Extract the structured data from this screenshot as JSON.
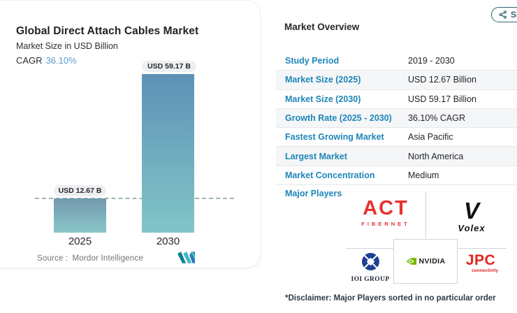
{
  "share_button": {
    "label": "Share"
  },
  "chart_card": {
    "title": "Global Direct Attach Cables Market",
    "subtitle": "Market Size in USD Billion",
    "cagr_label": "CAGR",
    "cagr_value": "36.10%",
    "source_label": "Source :",
    "source_value": "Mordor Intelligence"
  },
  "chart_data": {
    "type": "bar",
    "title": "Global Direct Attach Cables Market",
    "ylabel": "Market Size in USD Billion",
    "categories": [
      "2025",
      "2030"
    ],
    "values": [
      12.67,
      59.17
    ],
    "value_labels": [
      "USD 12.67 B",
      "USD 59.17 B"
    ],
    "cagr": "36.10%",
    "ylim": [
      0,
      59.17
    ],
    "gridline_at": 12.67,
    "grid": "single dashed reference line at 2025 value",
    "bar_gradient_top": "#5e92b6",
    "bar_gradient_bottom": "#82c5c8"
  },
  "overview": {
    "heading": "Market Overview",
    "rows": [
      {
        "label": "Study Period",
        "value": "2019 - 2030"
      },
      {
        "label": "Market Size (2025)",
        "value": "USD 12.67 Billion"
      },
      {
        "label": "Market Size (2030)",
        "value": "USD 59.17 Billion"
      },
      {
        "label": "Growth Rate (2025 - 2030)",
        "value": "36.10% CAGR"
      },
      {
        "label": "Fastest Growing Market",
        "value": "Asia Pacific"
      },
      {
        "label": "Largest Market",
        "value": "North America"
      },
      {
        "label": "Market Concentration",
        "value": "Medium"
      }
    ],
    "major_players_label": "Major Players",
    "players": {
      "act": {
        "line1": "ACT",
        "line2": "FIBERNET"
      },
      "volex": {
        "glyph": "V",
        "name": "Volex"
      },
      "ioi": {
        "name": "IOI GROUP"
      },
      "nvidia": {
        "name": "NVIDIA"
      },
      "jpc": {
        "line1": "JPC",
        "line2": "connectivity"
      }
    },
    "disclaimer": "*Disclaimer: Major Players sorted in no particular order"
  },
  "colors": {
    "label_blue": "#1e86b8",
    "cagr_blue": "#5b9ccd",
    "share_teal": "#2e6174",
    "act_red": "#e8312f",
    "jpc_red": "#e1251b",
    "nvidia_green": "#76b900",
    "ioi_navy": "#1c3f94",
    "row_alt_bg": "#f5f6f7",
    "pill_bg": "#edeff1"
  }
}
